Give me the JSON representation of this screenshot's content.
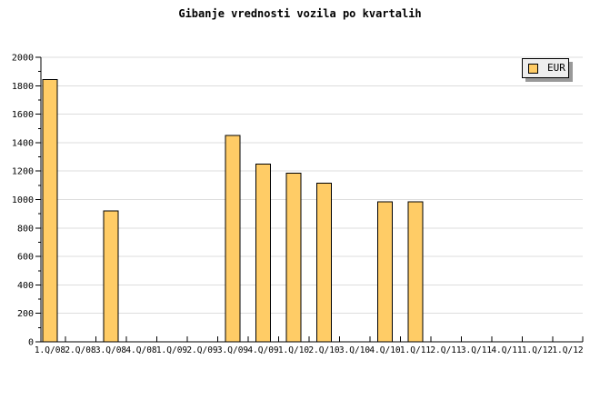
{
  "title": "Gibanje vrednosti vozila po kvartalih",
  "legend": {
    "label": "EUR",
    "swatch_color": "#FFCC66",
    "background": "#EEEEEE",
    "border_color": "#000000",
    "shadow_color": "#999999",
    "position": "top-right"
  },
  "chart_data": {
    "type": "bar",
    "title": "Gibanje vrednosti vozila po kvartalih",
    "categories": [
      "1.Q/08",
      "2.Q/08",
      "3.Q/08",
      "4.Q/08",
      "1.Q/09",
      "2.Q/09",
      "3.Q/09",
      "4.Q/09",
      "1.Q/10",
      "2.Q/10",
      "3.Q/10",
      "4.Q/10",
      "1.Q/11",
      "2.Q/11",
      "3.Q/11",
      "4.Q/11",
      "1.Q/12",
      "1.Q/12"
    ],
    "series": [
      {
        "name": "EUR",
        "values": [
          1845,
          null,
          920,
          null,
          null,
          null,
          1450,
          1250,
          1185,
          1115,
          null,
          985,
          985,
          null,
          null,
          null,
          null,
          null
        ]
      }
    ],
    "xlabel": "",
    "ylabel": "",
    "ylim": [
      0,
      2000
    ],
    "ytick_values": [
      0,
      200,
      400,
      600,
      800,
      1000,
      1200,
      1400,
      1600,
      1800,
      2000
    ],
    "ytick_minor_step": 100,
    "grid": "horizontal",
    "legend_position": "top-right",
    "colors": {
      "bar_fill": "#FFCC66",
      "bar_border": "#000000",
      "grid": "#DDDDDD",
      "axis": "#000000",
      "text": "#000000"
    }
  }
}
